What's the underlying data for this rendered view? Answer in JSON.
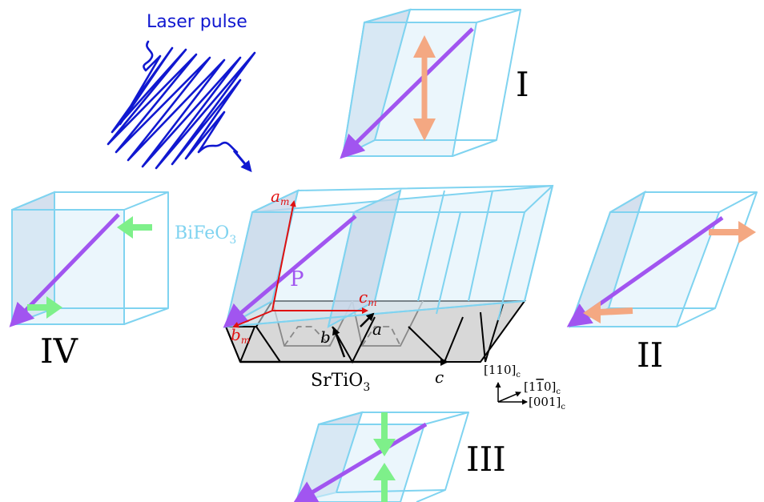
{
  "labels": {
    "laser": "Laser pulse",
    "state_1": "I",
    "state_2": "II",
    "state_3": "III",
    "state_4": "IV",
    "film": "BiFeO",
    "film_sub": "3",
    "substrate": "SrTiO",
    "substrate_sub": "3",
    "polarization": "P",
    "a_m": "a",
    "a_m_sub": "m",
    "b_m": "b",
    "b_m_sub": "m",
    "c_m": "c",
    "c_m_sub": "m",
    "a": "a",
    "b": "b",
    "c": "c",
    "dir_110": "[110]",
    "dir_1bar10_pre": "[1",
    "dir_1bar10_bar": "1",
    "dir_1bar10_post": "0]",
    "dir_001": "[001]",
    "dir_sub": "c"
  },
  "colors": {
    "cube_edge": "#7fd3f0",
    "polarization": "#a155f0",
    "strain_expand": "#f4a882",
    "strain_compress": "#7ef08a",
    "monoclinic_axes": "#e01010",
    "laser": "#1018d0",
    "film_label": "#7fd3f0"
  },
  "icons": [
    "laser-pulse-icon",
    "double-arrow-icon",
    "compress-arrow-icon"
  ]
}
